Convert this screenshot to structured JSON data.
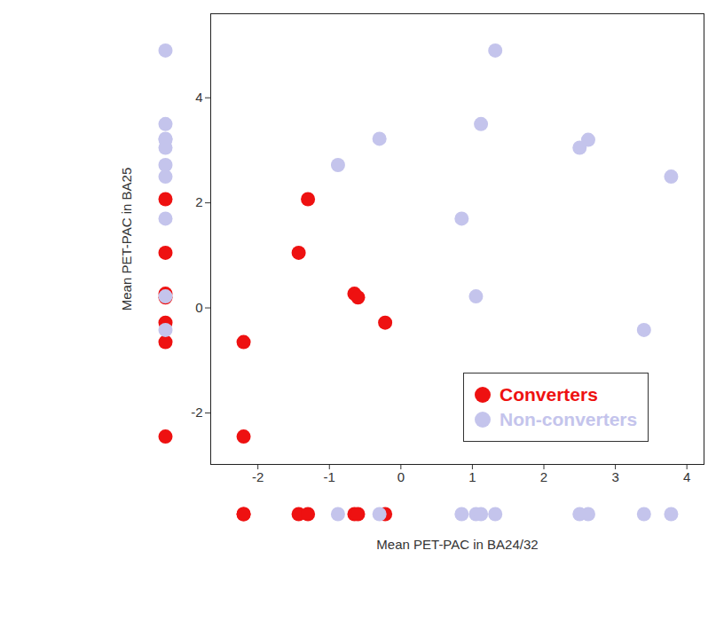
{
  "chart_data": {
    "type": "scatter",
    "xlabel": "Mean PET-PAC in BA24/32",
    "ylabel": "Mean PET-PAC in BA25",
    "xlim": [
      -2.66,
      4.24
    ],
    "ylim": [
      -2.98,
      5.6
    ],
    "xticks": [
      -2,
      -1,
      0,
      1,
      2,
      3,
      4
    ],
    "yticks": [
      -2,
      0,
      2,
      4
    ],
    "legend": "bottom-right",
    "series": [
      {
        "name": "Converters",
        "color": "#ee1111",
        "x": [
          -2.2,
          -2.2,
          -1.43,
          -1.3,
          -0.65,
          -0.6,
          -0.22
        ],
        "y": [
          -0.65,
          -2.45,
          1.05,
          2.07,
          0.27,
          0.2,
          -0.28
        ]
      },
      {
        "name": "Non-converters",
        "color": "#c4c4ec",
        "x": [
          -0.88,
          -0.3,
          0.85,
          1.05,
          1.12,
          1.32,
          2.5,
          2.62,
          3.4,
          3.78
        ],
        "y": [
          2.72,
          3.22,
          1.7,
          0.22,
          3.5,
          4.9,
          3.05,
          3.2,
          -0.42,
          2.5
        ]
      }
    ]
  }
}
